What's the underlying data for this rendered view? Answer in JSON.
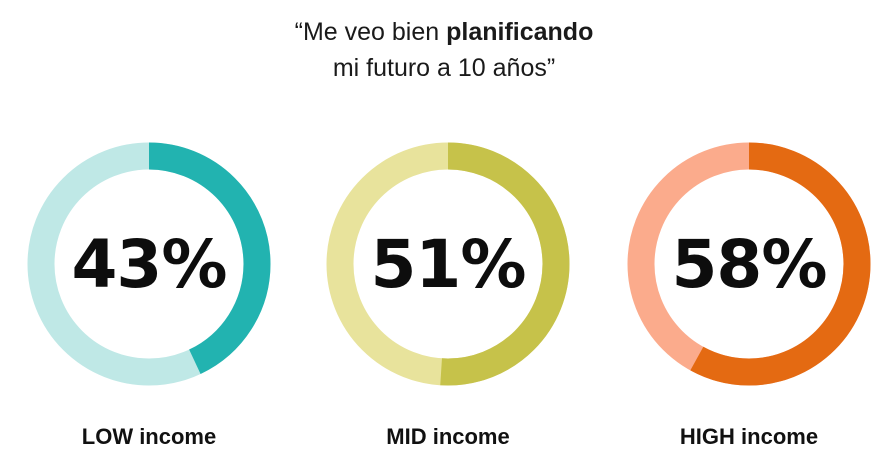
{
  "title": {
    "line1_pre": "“Me veo bien ",
    "line1_bold": "planificando",
    "line2": "mi futuro a 10 años”"
  },
  "chart_data": {
    "type": "pie",
    "title": "“Me veo bien planificando mi futuro a 10 años”",
    "categories": [
      "LOW income",
      "MID income",
      "HIGH income"
    ],
    "values": [
      43,
      51,
      58
    ],
    "unit": "%",
    "series": [
      {
        "name": "LOW income",
        "value": 43,
        "label": "43%",
        "color": "#22b3b0",
        "track_color": "#bfe8e6"
      },
      {
        "name": "MID income",
        "value": 51,
        "label": "51%",
        "color": "#c6c24a",
        "track_color": "#e8e39c"
      },
      {
        "name": "HIGH income",
        "value": 58,
        "label": "58%",
        "color": "#e46a12",
        "track_color": "#fbab8c"
      }
    ]
  }
}
